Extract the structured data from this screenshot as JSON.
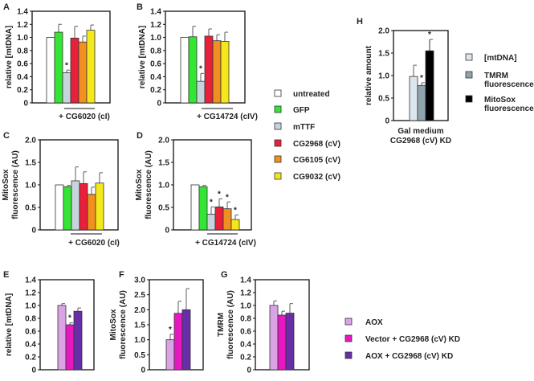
{
  "chart_data": [
    {
      "id": "A",
      "type": "bar",
      "panel_label": "A",
      "ylabel": [
        "relative [mtDNA]"
      ],
      "ylim": [
        0,
        1.4
      ],
      "yticks": [
        "0",
        "0.2",
        "0.4",
        "0.6",
        "0.8",
        "1.0",
        "1.2",
        "1.4"
      ],
      "categories": [
        "untreated",
        "GFP",
        "mTTF",
        "CG2968 (cV)",
        "CG6105 (cV)",
        "CG9032 (cV)"
      ],
      "values": [
        1.0,
        1.08,
        0.46,
        0.99,
        0.93,
        1.11
      ],
      "errors": [
        0,
        0.12,
        0.04,
        0.18,
        0.09,
        0.08
      ],
      "significant": [
        2
      ],
      "xlabel": "+ CG6020 (cI)",
      "colors": [
        "#ffffff",
        "#33e633",
        "#c8d4dc",
        "#e8203a",
        "#f0901e",
        "#f5e81a"
      ]
    },
    {
      "id": "B",
      "type": "bar",
      "panel_label": "B",
      "ylabel": [
        "relative [mtDNA]"
      ],
      "ylim": [
        0,
        1.4
      ],
      "yticks": [
        "0",
        "0.2",
        "0.4",
        "0.6",
        "0.8",
        "1.0",
        "1.2",
        "1.4"
      ],
      "categories": [
        "untreated",
        "GFP",
        "mTTF",
        "CG2968 (cV)",
        "CG6105 (cV)",
        "CG9032 (cV)"
      ],
      "values": [
        1.0,
        1.01,
        0.33,
        1.02,
        0.95,
        0.94
      ],
      "errors": [
        0,
        0.16,
        0.12,
        0.11,
        0.09,
        0.14
      ],
      "significant": [
        2
      ],
      "xlabel": "+ CG14724 (cIV)",
      "colors": [
        "#ffffff",
        "#33e633",
        "#c8d4dc",
        "#e8203a",
        "#f0901e",
        "#f5e81a"
      ]
    },
    {
      "id": "C",
      "type": "bar",
      "panel_label": "C",
      "ylabel": [
        "MitoSox",
        "fluorescence (AU)"
      ],
      "ylim": [
        0,
        2.0
      ],
      "yticks": [
        "0",
        "0.5",
        "1.0",
        "1.5",
        "2.0"
      ],
      "categories": [
        "untreated",
        "GFP",
        "mTTF",
        "CG2968 (cV)",
        "CG6105 (cV)",
        "CG9032 (cV)"
      ],
      "values": [
        1.0,
        0.96,
        1.09,
        1.03,
        0.79,
        1.04
      ],
      "errors": [
        0,
        0.03,
        0.31,
        0.26,
        0.16,
        0.23
      ],
      "significant": [],
      "xlabel": "+ CG6020 (cI)",
      "colors": [
        "#ffffff",
        "#33e633",
        "#c8d4dc",
        "#e8203a",
        "#f0901e",
        "#f5e81a"
      ]
    },
    {
      "id": "D",
      "type": "bar",
      "panel_label": "D",
      "ylabel": [
        "MitoSox",
        "fluorescence (AU)"
      ],
      "ylim": [
        0,
        2.0
      ],
      "yticks": [
        "0",
        "0.5",
        "1.0",
        "1.5",
        "2.0"
      ],
      "categories": [
        "untreated",
        "GFP",
        "mTTF",
        "CG2968 (cV)",
        "CG6105 (cV)",
        "CG9032 (cV)"
      ],
      "values": [
        1.0,
        0.96,
        0.35,
        0.51,
        0.47,
        0.23
      ],
      "errors": [
        0,
        0.03,
        0.16,
        0.18,
        0.15,
        0.1
      ],
      "significant": [
        2,
        3,
        4,
        5
      ],
      "xlabel": "+ CG14724 (cIV)",
      "colors": [
        "#ffffff",
        "#33e633",
        "#c8d4dc",
        "#e8203a",
        "#f0901e",
        "#f5e81a"
      ]
    },
    {
      "id": "E",
      "type": "bar",
      "panel_label": "E",
      "ylabel": [
        "relative [mtDNA]"
      ],
      "ylim": [
        0,
        1.4
      ],
      "yticks": [
        "0",
        "0.2",
        "0.4",
        "0.6",
        "0.8",
        "1.0",
        "1.2",
        "1.4"
      ],
      "categories": [
        "AOX",
        "Vector + CG2968 (cV) KD",
        "AOX + CG2968 (cV) KD"
      ],
      "values": [
        1.0,
        0.7,
        0.91
      ],
      "errors": [
        0.03,
        0.03,
        0.05
      ],
      "significant": [
        1
      ],
      "xlabel": "",
      "colors": [
        "#d9a3e6",
        "#e619c0",
        "#6a2da8"
      ]
    },
    {
      "id": "F",
      "type": "bar",
      "panel_label": "F",
      "ylabel": [
        "MitoSox",
        "fluorescence (AU)"
      ],
      "ylim": [
        0,
        3.0
      ],
      "yticks": [
        "0",
        "0.5",
        "1.0",
        "1.5",
        "2.0",
        "2.5",
        "3.0"
      ],
      "categories": [
        "AOX",
        "Vector + CG2968 (cV) KD",
        "AOX + CG2968 (cV) KD"
      ],
      "values": [
        1.0,
        1.88,
        2.0
      ],
      "errors": [
        0.18,
        0.4,
        0.7
      ],
      "significant": [
        0
      ],
      "xlabel": "",
      "colors": [
        "#d9a3e6",
        "#e619c0",
        "#6a2da8"
      ]
    },
    {
      "id": "G",
      "type": "bar",
      "panel_label": "G",
      "ylabel": [
        "TMRM",
        "fluorescence (AU)"
      ],
      "ylim": [
        0,
        1.4
      ],
      "yticks": [
        "0",
        "0.2",
        "0.4",
        "0.6",
        "0.8",
        "1.0",
        "1.2",
        "1.4"
      ],
      "categories": [
        "AOX",
        "Vector + CG2968 (cV) KD",
        "AOX + CG2968 (cV) KD"
      ],
      "values": [
        1.0,
        0.85,
        0.88
      ],
      "errors": [
        0.07,
        0.06,
        0.15
      ],
      "significant": [],
      "xlabel": "",
      "colors": [
        "#d9a3e6",
        "#e619c0",
        "#6a2da8"
      ]
    },
    {
      "id": "H",
      "type": "bar",
      "panel_label": "H",
      "ylabel": [
        "relative amount"
      ],
      "ylim": [
        0,
        2.0
      ],
      "yticks": [
        "0",
        "0.5",
        "1.0",
        "1.5",
        "2.0"
      ],
      "categories": [
        "[mtDNA]",
        "TMRM fluorescence",
        "MitoSox fluorescence"
      ],
      "values": [
        0.98,
        0.78,
        1.55
      ],
      "errors": [
        0.25,
        0.06,
        0.25
      ],
      "significant": [
        1,
        2
      ],
      "xlabel": [
        "Gal medium",
        "CG2968 (cV) KD"
      ],
      "colors": [
        "#dce6ee",
        "#8fa3ad",
        "#000000"
      ]
    }
  ],
  "legends": {
    "main": [
      {
        "label": "untreated",
        "color": "#ffffff"
      },
      {
        "label": "GFP",
        "color": "#33e633"
      },
      {
        "label": "mTTF",
        "color": "#c8d4dc"
      },
      {
        "label": "CG2968 (cV)",
        "color": "#e8203a"
      },
      {
        "label": "CG6105 (cV)",
        "color": "#f0901e"
      },
      {
        "label": "CG9032 (cV)",
        "color": "#f5e81a"
      }
    ],
    "h": [
      {
        "label": [
          "[mtDNA]"
        ],
        "color": "#dce6ee"
      },
      {
        "label": [
          "TMRM",
          "fluorescence"
        ],
        "color": "#8fa3ad"
      },
      {
        "label": [
          "MitoSox",
          "fluorescence"
        ],
        "color": "#000000"
      }
    ],
    "efg": [
      {
        "label": "AOX",
        "color": "#d9a3e6"
      },
      {
        "label": "Vector + CG2968 (cV) KD",
        "color": "#e619c0"
      },
      {
        "label": "AOX + CG2968 (cV) KD",
        "color": "#6a2da8"
      }
    ]
  },
  "star_symbol": "*"
}
